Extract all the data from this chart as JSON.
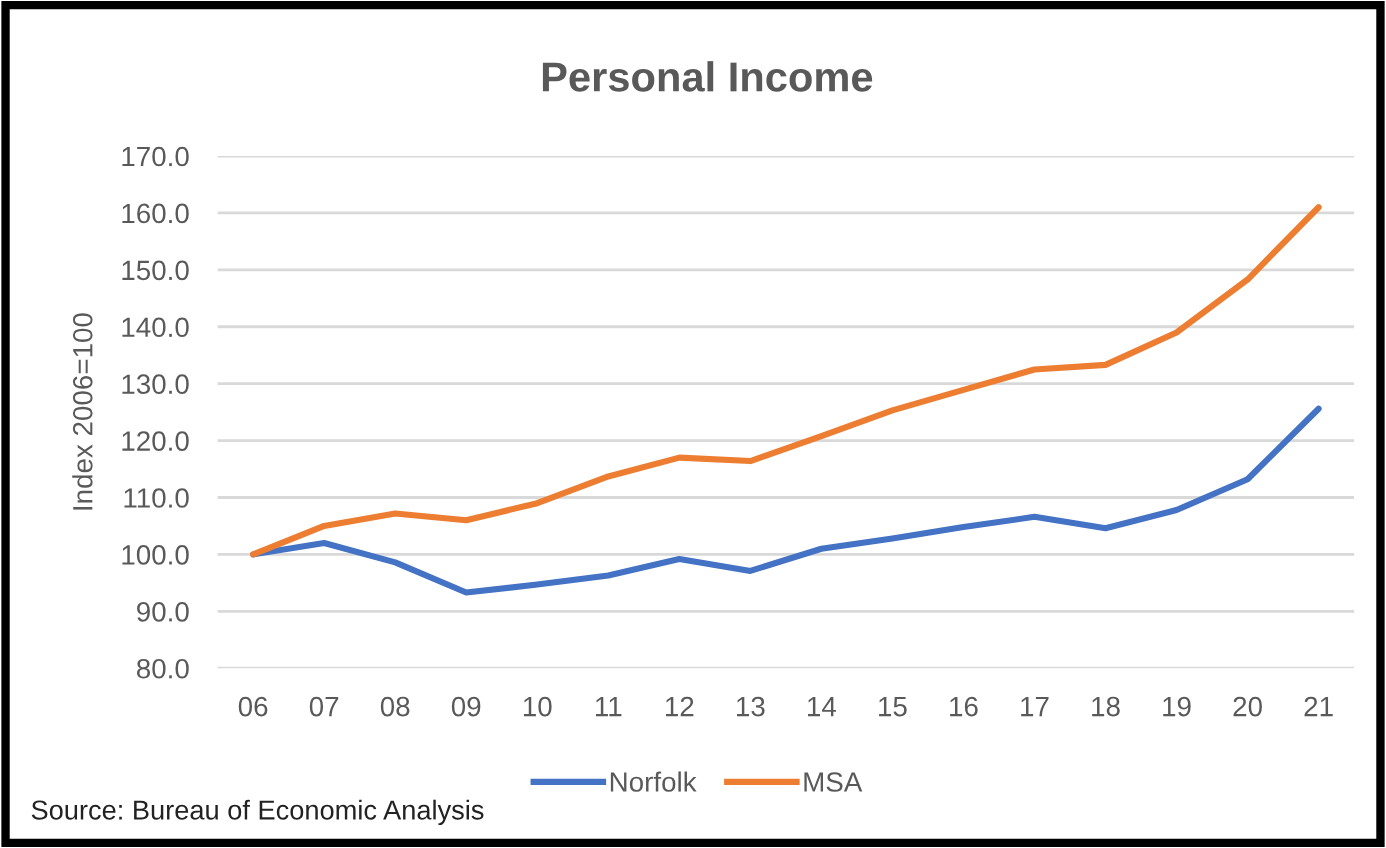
{
  "chart_data": {
    "type": "line",
    "title": "Personal Income",
    "ylabel": "Index 2006=100",
    "categories": [
      "06",
      "07",
      "08",
      "09",
      "10",
      "11",
      "12",
      "13",
      "14",
      "15",
      "16",
      "17",
      "18",
      "19",
      "20",
      "21"
    ],
    "series": [
      {
        "name": "Norfolk",
        "color": "#4472c4",
        "values": [
          100,
          102,
          98.6,
          93.3,
          94.7,
          96.3,
          99.2,
          97.1,
          101,
          102.8,
          104.8,
          106.6,
          104.6,
          107.8,
          113.2,
          125.6
        ]
      },
      {
        "name": "MSA",
        "color": "#ed7d31",
        "values": [
          100,
          105,
          107.2,
          106,
          109,
          113.7,
          117,
          116.4,
          120.8,
          125.3,
          128.9,
          132.5,
          133.3,
          139,
          148.3,
          161
        ]
      }
    ],
    "ylim": [
      80,
      170
    ],
    "yticks": [
      {
        "value": 80,
        "label": "80.0"
      },
      {
        "value": 90,
        "label": "90.0"
      },
      {
        "value": 100,
        "label": "100.0"
      },
      {
        "value": 110,
        "label": "110.0"
      },
      {
        "value": 120,
        "label": "120.0"
      },
      {
        "value": 130,
        "label": "130.0"
      },
      {
        "value": 140,
        "label": "140.0"
      },
      {
        "value": 150,
        "label": "150.0"
      },
      {
        "value": 160,
        "label": "160.0"
      },
      {
        "value": 170,
        "label": "170.0"
      }
    ],
    "grid": "y",
    "legend": "bottom",
    "marker": "none",
    "line_style": "solid",
    "annotations": [
      "Source: Bureau of Economic Analysis"
    ]
  }
}
